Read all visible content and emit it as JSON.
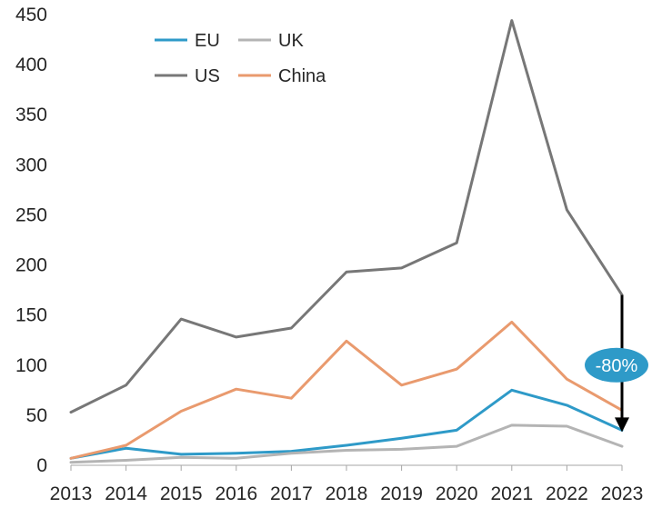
{
  "chart_data": {
    "type": "line",
    "x": [
      "2013",
      "2014",
      "2015",
      "2016",
      "2017",
      "2018",
      "2019",
      "2020",
      "2021",
      "2022",
      "2023"
    ],
    "ylim": [
      0,
      450
    ],
    "yticks": [
      0,
      50,
      100,
      150,
      200,
      250,
      300,
      350,
      400,
      450
    ],
    "grid": false,
    "legend_position": "top-left",
    "series": [
      {
        "name": "EU",
        "color": "#2e9ac8",
        "values": [
          7,
          17,
          11,
          12,
          14,
          20,
          27,
          35,
          75,
          60,
          35
        ]
      },
      {
        "name": "UK",
        "color": "#b4b4b4",
        "values": [
          3,
          5,
          8,
          7,
          12,
          15,
          16,
          19,
          40,
          39,
          19
        ]
      },
      {
        "name": "US",
        "color": "#777777",
        "values": [
          53,
          80,
          146,
          128,
          137,
          193,
          197,
          222,
          444,
          255,
          170
        ]
      },
      {
        "name": "China",
        "color": "#e99a6e",
        "values": [
          7,
          20,
          54,
          76,
          67,
          124,
          80,
          96,
          143,
          86,
          55
        ]
      }
    ],
    "annotation": {
      "text": "-80%",
      "color": "#2e9ac8",
      "arrow_from": 170,
      "arrow_to": 35,
      "x": "2023"
    }
  }
}
